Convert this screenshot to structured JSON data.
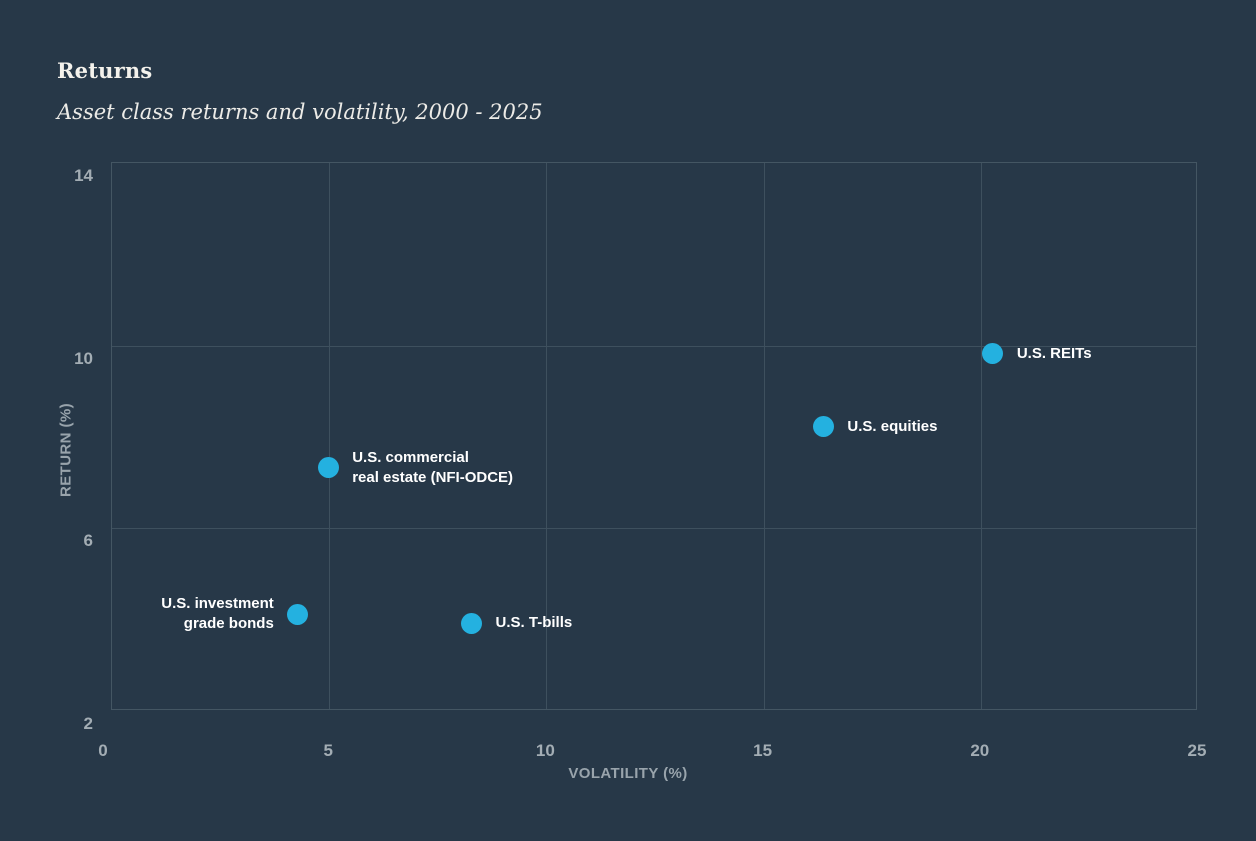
{
  "chart_data": {
    "type": "scatter",
    "title": "Returns",
    "subtitle": "Asset class returns and volatility, 2000 - 2025",
    "xlabel": "VOLATILITY (%)",
    "ylabel": "RETURN (%)",
    "xlim": [
      0,
      25
    ],
    "ylim": [
      2,
      14
    ],
    "xticks": [
      0,
      5,
      10,
      15,
      20,
      25
    ],
    "yticks": [
      2,
      6,
      10,
      14
    ],
    "grid": true,
    "legend": "none",
    "colors": {
      "background": "#273848",
      "gridline": "#3e505e",
      "plot_border": "#445663",
      "point": "#24b1e0",
      "point_label": "#ffffff",
      "tick_label": "#a3adb4",
      "axis_title": "#99a4ac",
      "title": "#f4f2ec"
    },
    "points": [
      {
        "name": "U.S. REITs",
        "x": 20.3,
        "y": 9.8,
        "label_lines": [
          "U.S. REITs"
        ],
        "label_side": "right"
      },
      {
        "name": "U.S. equities",
        "x": 16.4,
        "y": 8.2,
        "label_lines": [
          "U.S. equities"
        ],
        "label_side": "right"
      },
      {
        "name": "U.S. commercial real estate (NFI-ODCE)",
        "x": 5.0,
        "y": 7.3,
        "label_lines": [
          "U.S. commercial",
          "real estate (NFI-ODCE)"
        ],
        "label_side": "right"
      },
      {
        "name": "U.S. investment grade bonds",
        "x": 4.3,
        "y": 4.1,
        "label_lines": [
          "U.S. investment",
          "grade bonds"
        ],
        "label_side": "left"
      },
      {
        "name": "U.S. T-bills",
        "x": 8.3,
        "y": 3.9,
        "label_lines": [
          "U.S. T-bills"
        ],
        "label_side": "right"
      }
    ]
  }
}
